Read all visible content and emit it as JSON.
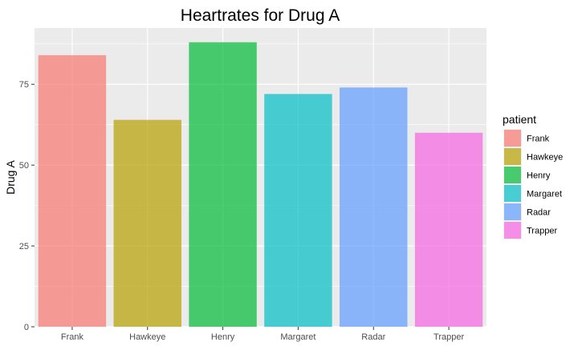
{
  "chart_data": {
    "type": "bar",
    "title": "Heartrates for Drug A",
    "xlabel": "",
    "ylabel": "Drug A",
    "categories": [
      "Frank",
      "Hawkeye",
      "Henry",
      "Margaret",
      "Radar",
      "Trapper"
    ],
    "values": [
      84,
      64,
      88,
      72,
      74,
      60
    ],
    "colors": [
      "#f8766d",
      "#b79f00",
      "#00ba38",
      "#00bfc4",
      "#619cff",
      "#f564e3"
    ],
    "ylim": [
      0,
      92.4
    ],
    "yticks": [
      0,
      25,
      50,
      75
    ],
    "ytick_labels": [
      "0",
      "25",
      "50",
      "75"
    ],
    "grid": true,
    "legend": {
      "title": "patient",
      "position": "right",
      "entries": [
        "Frank",
        "Hawkeye",
        "Henry",
        "Margaret",
        "Radar",
        "Trapper"
      ]
    }
  }
}
